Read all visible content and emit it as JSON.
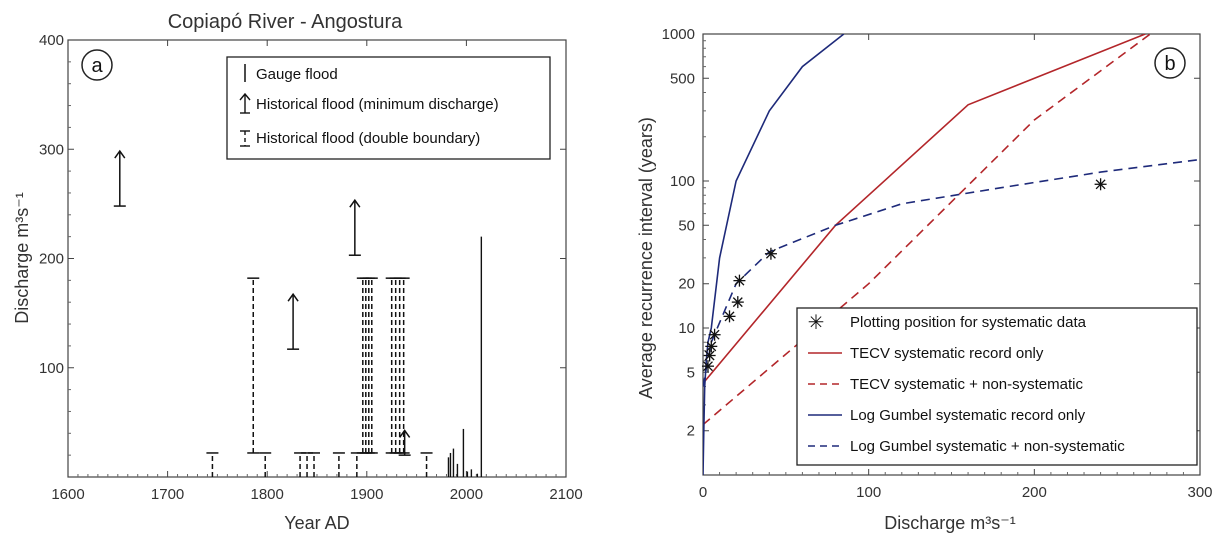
{
  "chart_data": [
    {
      "type": "scatter",
      "panel": "a",
      "title": "Copiapó River - Angostura",
      "xlabel": "Year AD",
      "ylabel": "Discharge m³s⁻¹",
      "xlim": [
        1600,
        2100
      ],
      "ylim": [
        0,
        400
      ],
      "xticks": [
        1600,
        1700,
        1800,
        1900,
        2000,
        2100
      ],
      "yticks": [
        100,
        200,
        300,
        400
      ],
      "legend_position": "top-right",
      "legend": [
        "Gauge flood",
        "Historical flood (minimum discharge)",
        "Historical flood (double boundary)"
      ],
      "historical_minimum": [
        {
          "year": 1652,
          "discharge": 248
        },
        {
          "year": 1826,
          "discharge": 117
        },
        {
          "year": 1888,
          "discharge": 203
        },
        {
          "year": 1938,
          "discharge": 20
        }
      ],
      "historical_double_boundary": [
        {
          "year": 1745,
          "lower": 0,
          "upper": 22
        },
        {
          "year": 1786,
          "lower": 22,
          "upper": 182
        },
        {
          "year": 1798,
          "lower": 0,
          "upper": 22
        },
        {
          "year": 1833,
          "lower": 0,
          "upper": 22
        },
        {
          "year": 1840,
          "lower": 0,
          "upper": 22
        },
        {
          "year": 1847,
          "lower": 0,
          "upper": 22
        },
        {
          "year": 1872,
          "lower": 0,
          "upper": 22
        },
        {
          "year": 1890,
          "lower": 0,
          "upper": 22
        },
        {
          "year": 1896,
          "lower": 22,
          "upper": 182
        },
        {
          "year": 1899,
          "lower": 22,
          "upper": 182
        },
        {
          "year": 1902,
          "lower": 22,
          "upper": 182
        },
        {
          "year": 1905,
          "lower": 22,
          "upper": 182
        },
        {
          "year": 1925,
          "lower": 22,
          "upper": 182
        },
        {
          "year": 1929,
          "lower": 22,
          "upper": 182
        },
        {
          "year": 1933,
          "lower": 22,
          "upper": 182
        },
        {
          "year": 1937,
          "lower": 22,
          "upper": 182
        },
        {
          "year": 1960,
          "lower": 0,
          "upper": 22
        }
      ],
      "gauge_floods": [
        {
          "year": 1982,
          "discharge": 18
        },
        {
          "year": 1984,
          "discharge": 22
        },
        {
          "year": 1987,
          "discharge": 26
        },
        {
          "year": 1991,
          "discharge": 12
        },
        {
          "year": 1997,
          "discharge": 44
        },
        {
          "year": 2001,
          "discharge": 5
        },
        {
          "year": 2005,
          "discharge": 7
        },
        {
          "year": 2011,
          "discharge": 3
        },
        {
          "year": 2015,
          "discharge": 220
        }
      ]
    },
    {
      "type": "line",
      "panel": "b",
      "xlabel": "Discharge m³s⁻¹",
      "ylabel": "Average recurrence interval (years)",
      "xlim": [
        0,
        300
      ],
      "ylim": [
        1,
        1000
      ],
      "yscale": "log",
      "xticks": [
        0,
        100,
        200,
        300
      ],
      "yticks": [
        2,
        5,
        10,
        20,
        50,
        100,
        500,
        1000
      ],
      "legend_position": "bottom-right",
      "colors": {
        "tecv": "#b3262a",
        "gumbel": "#1e2a7a"
      },
      "plotting_positions": {
        "name": "Plotting position for systematic data",
        "x": [
          3,
          4,
          5,
          7,
          16,
          21,
          22,
          41,
          240
        ],
        "y": [
          5.5,
          6.5,
          7.5,
          9,
          12,
          15,
          21,
          32,
          95
        ]
      },
      "series": [
        {
          "name": "TECV systematic record only",
          "style": "solid",
          "color": "#b3262a",
          "x": [
            0,
            80,
            160,
            267
          ],
          "y": [
            4.2,
            50,
            330,
            1000
          ]
        },
        {
          "name": "TECV systematic + non-systematic",
          "style": "dashed",
          "color": "#b3262a",
          "x": [
            0,
            100,
            200,
            270
          ],
          "y": [
            2.2,
            20,
            260,
            1000
          ]
        },
        {
          "name": "Log Gumbel systematic record only",
          "style": "solid",
          "color": "#1e2a7a",
          "x": [
            0,
            0.5,
            1,
            2,
            3,
            5,
            10,
            20,
            40,
            60,
            85
          ],
          "y": [
            1,
            2,
            4,
            6,
            8,
            10,
            30,
            100,
            300,
            600,
            1000
          ]
        },
        {
          "name": "Log Gumbel systematic + non-systematic",
          "style": "dashed",
          "color": "#1e2a7a",
          "x": [
            0,
            5,
            20,
            40,
            80,
            120,
            180,
            240,
            300
          ],
          "y": [
            4,
            8,
            20,
            33,
            50,
            70,
            90,
            115,
            140
          ]
        }
      ]
    }
  ]
}
